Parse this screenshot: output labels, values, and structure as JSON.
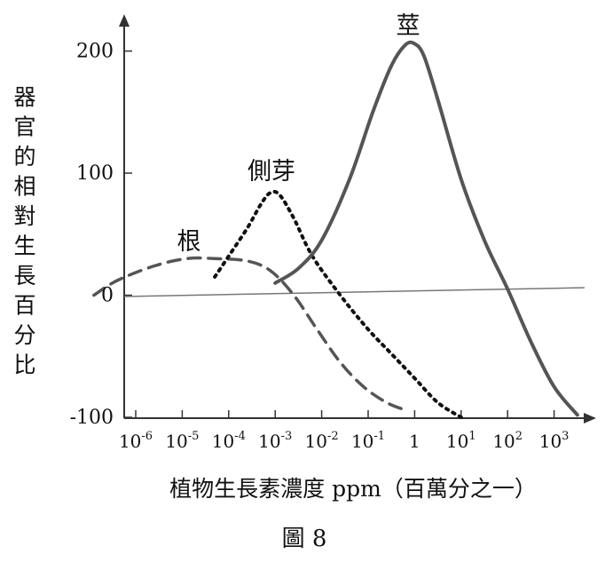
{
  "chart_data": {
    "type": "line",
    "ylabel": "器官的相對生長百分比",
    "xlabel": "植物生長素濃度 ppm（百萬分之一）",
    "caption": "圖 8",
    "y_ticks": [
      200,
      100,
      0,
      -100
    ],
    "y_tick_labels": [
      "200",
      "100",
      "0",
      "-100"
    ],
    "x_ticks": [
      -6,
      -5,
      -4,
      -3,
      -2,
      -1,
      0,
      1,
      2,
      3
    ],
    "x_tick_labels": [
      {
        "base": "10",
        "sup": "-6"
      },
      {
        "base": "10",
        "sup": "-5"
      },
      {
        "base": "10",
        "sup": "-4"
      },
      {
        "base": "10",
        "sup": "-3"
      },
      {
        "base": "10",
        "sup": "-2"
      },
      {
        "base": "10",
        "sup": "-1"
      },
      {
        "base": "1",
        "sup": ""
      },
      {
        "base": "10",
        "sup": "1"
      },
      {
        "base": "10",
        "sup": "2"
      },
      {
        "base": "10",
        "sup": "3"
      }
    ],
    "x_scale": "log",
    "xlim": [
      -7,
      4
    ],
    "ylim": [
      -100,
      230
    ],
    "series": [
      {
        "name": "根",
        "style": "dashed",
        "x_log10": [
          -6.9,
          -6.4,
          -5.6,
          -4.9,
          -4.3,
          -3.6,
          -3.1,
          -2.6,
          -2.1,
          -1.6,
          -1.1,
          -0.6,
          -0.2
        ],
        "values": [
          0,
          12,
          24,
          30,
          30,
          28,
          20,
          0,
          -28,
          -55,
          -75,
          -88,
          -94
        ]
      },
      {
        "name": "側芽",
        "style": "dotted",
        "x_log10": [
          -4.3,
          -4.0,
          -3.6,
          -3.3,
          -3.1,
          -2.9,
          -2.6,
          -2.2,
          -1.6,
          -1.0,
          -0.5,
          0.0,
          0.5,
          1.0
        ],
        "values": [
          15,
          32,
          55,
          75,
          84,
          82,
          63,
          32,
          0,
          -28,
          -48,
          -68,
          -88,
          -100
        ]
      },
      {
        "name": "莖",
        "style": "solid",
        "x_log10": [
          -3.0,
          -2.5,
          -2.0,
          -1.4,
          -0.9,
          -0.5,
          -0.2,
          0.0,
          0.2,
          0.5,
          1.0,
          1.5,
          2.0,
          2.5,
          3.0,
          3.5
        ],
        "values": [
          10,
          22,
          45,
          95,
          150,
          188,
          205,
          206,
          196,
          160,
          95,
          45,
          5,
          -38,
          -75,
          -98
        ]
      }
    ],
    "annotations": [
      "根",
      "側芽",
      "莖"
    ]
  }
}
